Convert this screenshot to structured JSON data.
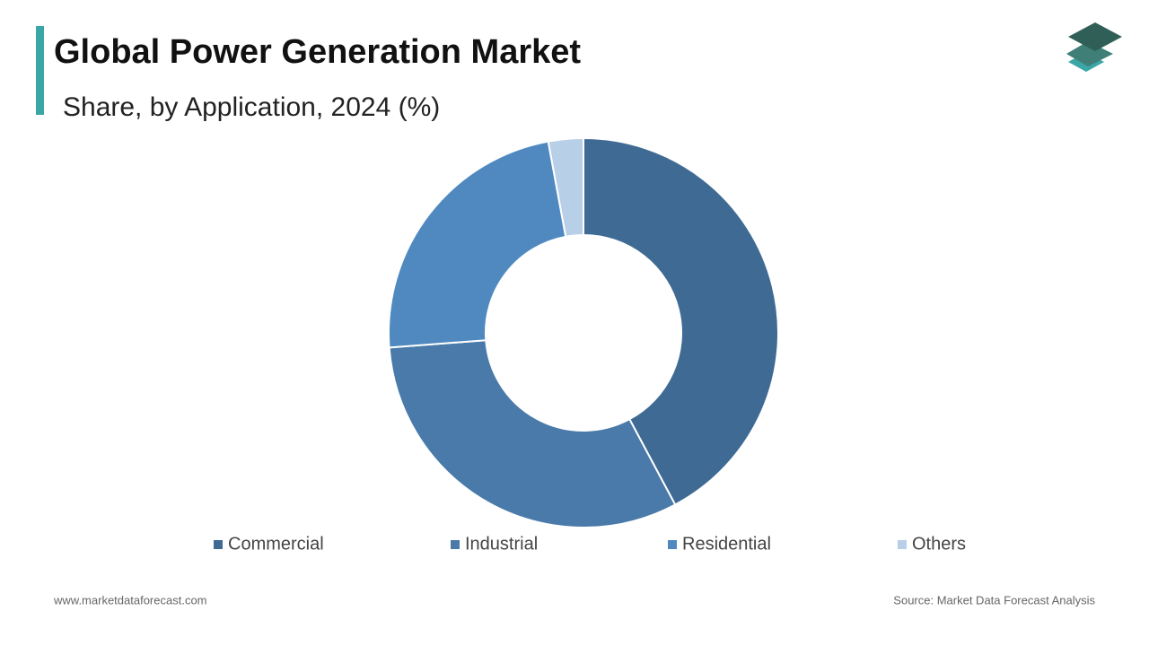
{
  "chart_data": {
    "type": "pie",
    "title": "Global Power Generation Market",
    "subtitle": "Share, by Application, 2024 (%)",
    "categories": [
      "Commercial",
      "Industrial",
      "Residential",
      "Others"
    ],
    "values": [
      42.2,
      31.6,
      23.3,
      2.9
    ],
    "colors": [
      "#3e6a94",
      "#4a7aaa",
      "#4f89bf",
      "#b8cfe8"
    ],
    "donut": true
  },
  "footer": {
    "website": "www.marketdataforecast.com",
    "source": "Source: Market Data Forecast Analysis"
  }
}
